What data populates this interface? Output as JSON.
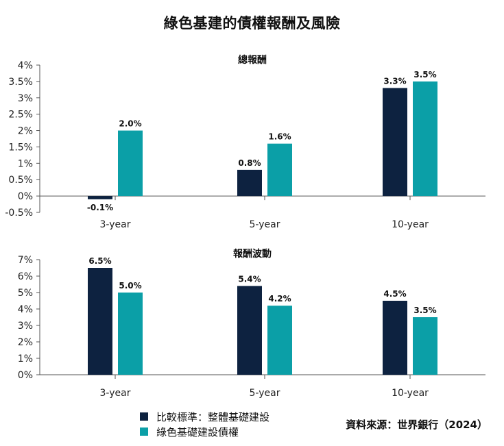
{
  "title": "綠色基建的債權報酬及風險",
  "colors": {
    "benchmark": "#0d2240",
    "green_bond": "#0b9fa7",
    "axis": "#555555"
  },
  "legend": [
    {
      "label": "比較標準：整體基礎建設",
      "color": "#0d2240"
    },
    {
      "label": "綠色基礎建設債權",
      "color": "#0b9fa7"
    }
  ],
  "source": "資料來源：世界銀行（2024）",
  "chart_data": [
    {
      "type": "bar",
      "title": "總報酬",
      "categories": [
        "3-year",
        "5-year",
        "10-year"
      ],
      "series": [
        {
          "name": "比較標準：整體基礎建設",
          "values": [
            -0.1,
            0.8,
            3.3
          ],
          "labels": [
            "-0.1%",
            "0.8%",
            "3.3%"
          ]
        },
        {
          "name": "綠色基礎建設債權",
          "values": [
            2.0,
            1.6,
            3.5
          ],
          "labels": [
            "2.0%",
            "1.6%",
            "3.5%"
          ]
        }
      ],
      "ylim": [
        -0.5,
        4
      ],
      "yticks": [
        4,
        3.5,
        3,
        2.5,
        2,
        1.5,
        1,
        0.5,
        0,
        -0.5
      ],
      "ytick_labels": [
        "4%",
        "3.5%",
        "3%",
        "2.5%",
        "2%",
        "1.5%",
        "1%",
        "0.5%",
        "0%",
        "-0.5%"
      ],
      "grid": false
    },
    {
      "type": "bar",
      "title": "報酬波動",
      "categories": [
        "3-year",
        "5-year",
        "10-year"
      ],
      "series": [
        {
          "name": "比較標準：整體基礎建設",
          "values": [
            6.5,
            5.4,
            4.5
          ],
          "labels": [
            "6.5%",
            "5.4%",
            "4.5%"
          ]
        },
        {
          "name": "綠色基礎建設債權",
          "values": [
            5.0,
            4.2,
            3.5
          ],
          "labels": [
            "5.0%",
            "4.2%",
            "3.5%"
          ]
        }
      ],
      "ylim": [
        0,
        7
      ],
      "yticks": [
        7,
        6,
        5,
        4,
        3,
        2,
        1,
        0
      ],
      "ytick_labels": [
        "7%",
        "6%",
        "5%",
        "4%",
        "3%",
        "2%",
        "1%",
        "0%"
      ],
      "grid": false
    }
  ]
}
